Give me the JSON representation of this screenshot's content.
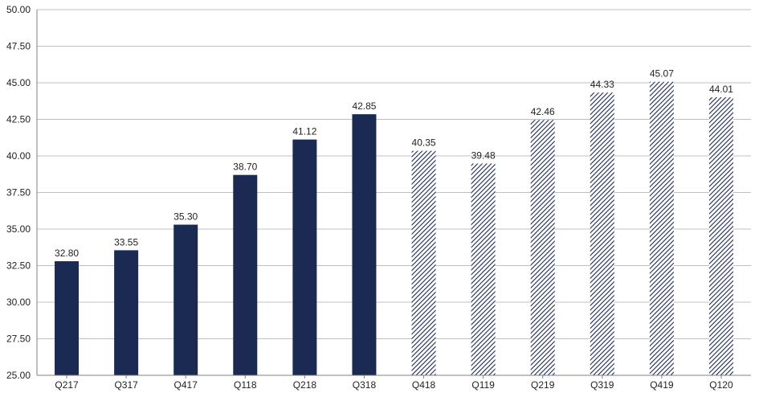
{
  "chart_data": {
    "type": "bar",
    "categories": [
      "Q217",
      "Q317",
      "Q417",
      "Q118",
      "Q218",
      "Q318",
      "Q418",
      "Q119",
      "Q219",
      "Q319",
      "Q419",
      "Q120"
    ],
    "values": [
      32.8,
      33.55,
      35.3,
      38.7,
      41.12,
      42.85,
      40.35,
      39.48,
      42.46,
      44.33,
      45.07,
      44.01
    ],
    "value_labels": [
      "32.80",
      "33.55",
      "35.30",
      "38.70",
      "41.12",
      "42.85",
      "40.35",
      "39.48",
      "42.46",
      "44.33",
      "45.07",
      "44.01"
    ],
    "bar_styles": [
      "solid",
      "solid",
      "solid",
      "solid",
      "solid",
      "solid",
      "hatched",
      "hatched",
      "hatched",
      "hatched",
      "hatched",
      "hatched"
    ],
    "ylim": [
      25,
      50
    ],
    "yticks": [
      "25.00",
      "27.50",
      "30.00",
      "32.50",
      "35.00",
      "37.50",
      "40.00",
      "42.50",
      "45.00",
      "47.50",
      "50.00"
    ],
    "title": "",
    "xlabel": "",
    "ylabel": "",
    "grid": true,
    "legend": "none",
    "colors": {
      "bar": "#1b2a52",
      "grid": "#c0c0c0",
      "axis": "#808080",
      "text": "#222222"
    }
  }
}
